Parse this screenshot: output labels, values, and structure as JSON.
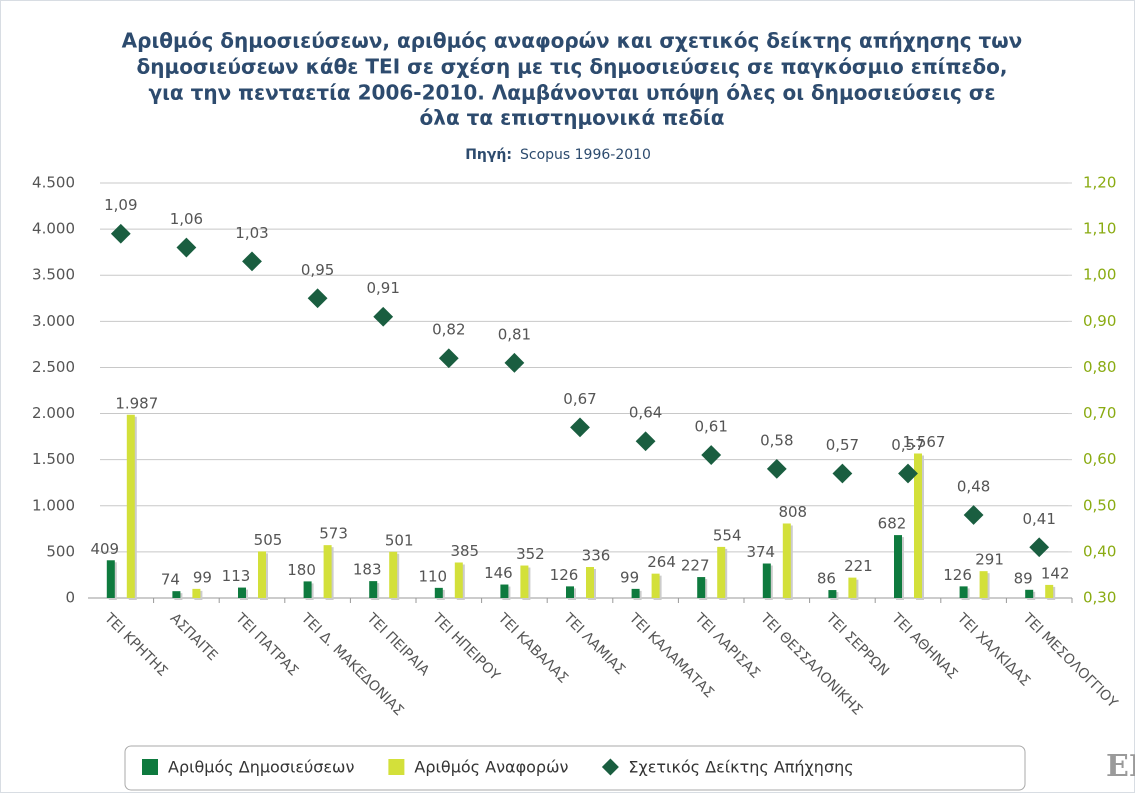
{
  "chart_data": {
    "type": "bar_scatter",
    "title_lines": [
      "Αριθμός δημοσιεύσεων, αριθμός αναφορών και σχετικός δείκτης απήχησης των",
      "δημοσιεύσεων κάθε ΤΕΙ σε σχέση με τις δημοσιεύσεις σε παγκόσμιο επίπεδο,",
      "για την πενταετία 2006-2010. Λαμβάνονται υπόψη όλες οι δημοσιεύσεις σε",
      "όλα τα επιστημονικά πεδία"
    ],
    "source_label": "Πηγή:",
    "source": "Scopus 1996-2010",
    "logo_text": "EK",
    "categories": [
      "ΤΕΙ ΚΡΗΤΗΣ",
      "ΑΣΠΑΙΤΕ",
      "ΤΕΙ ΠΑΤΡΑΣ",
      "ΤΕΙ Δ. ΜΑΚΕΔΟΝΙΑΣ",
      "ΤΕΙ ΠΕΙΡΑΙΑ",
      "ΤΕΙ ΗΠΕΙΡΟΥ",
      "ΤΕΙ ΚΑΒΑΛΑΣ",
      "ΤΕΙ ΛΑΜΙΑΣ",
      "ΤΕΙ ΚΑΛΑΜΑΤΑΣ",
      "ΤΕΙ ΛΑΡΙΣΑΣ",
      "ΤΕΙ ΘΕΣΣΑΛΟΝΙΚΗΣ",
      "ΤΕΙ ΣΕΡΡΩΝ",
      "ΤΕΙ ΑΘΗΝΑΣ",
      "ΤΕΙ ΧΑΛΚΙΔΑΣ",
      "ΤΕΙ ΜΕΣΟΛΟΓΓΙΟΥ"
    ],
    "series": [
      {
        "name": "Αριθμός Δημοσιεύσεων",
        "color": "#0e7a3e",
        "kind": "bar",
        "values": [
          409,
          74,
          113,
          180,
          183,
          110,
          146,
          126,
          99,
          227,
          374,
          86,
          682,
          126,
          89
        ]
      },
      {
        "name": "Αριθμός Αναφορών",
        "color": "#d3e03a",
        "kind": "bar",
        "values": [
          1987,
          99,
          505,
          573,
          501,
          385,
          352,
          336,
          264,
          554,
          808,
          221,
          1567,
          291,
          142
        ],
        "value_labels": [
          "1.987",
          "99",
          "505",
          "573",
          "501",
          "385",
          "352",
          "336",
          "264",
          "554",
          "808",
          "221",
          "1.567",
          "291",
          "142"
        ]
      },
      {
        "name": "Σχετικός Δείκτης Απήχησης",
        "color": "#1a5e40",
        "kind": "scatter",
        "axis": "y2",
        "values": [
          1.09,
          1.06,
          1.03,
          0.95,
          0.91,
          0.82,
          0.81,
          0.67,
          0.64,
          0.61,
          0.58,
          0.57,
          0.57,
          0.48,
          0.41
        ],
        "value_labels": [
          "1,09",
          "1,06",
          "1,03",
          "0,95",
          "0,91",
          "0,82",
          "0,81",
          "0,67",
          "0,64",
          "0,61",
          "0,58",
          "0,57",
          "0,57",
          "0,48",
          "0,41"
        ]
      }
    ],
    "ylim": [
      0,
      4500
    ],
    "yticks": [
      0,
      500,
      {
        "value": 1000,
        "label": "1.000"
      },
      {
        "value": 1500,
        "label": "1.500"
      },
      {
        "value": 2000,
        "label": "2.000"
      },
      {
        "value": 2500,
        "label": "2.500"
      },
      {
        "value": 3000,
        "label": "3.000"
      },
      {
        "value": 3500,
        "label": "3.500"
      },
      {
        "value": 4000,
        "label": "4.000"
      },
      {
        "value": 4500,
        "label": "4.500"
      }
    ],
    "y2lim": [
      0.3,
      1.2
    ],
    "y2ticks": [
      {
        "value": 0.3,
        "label": "0,30"
      },
      {
        "value": 0.4,
        "label": "0,40"
      },
      {
        "value": 0.5,
        "label": "0,50"
      },
      {
        "value": 0.6,
        "label": "0,60"
      },
      {
        "value": 0.7,
        "label": "0,70"
      },
      {
        "value": 0.8,
        "label": "0,80"
      },
      {
        "value": 0.9,
        "label": "0,90"
      },
      {
        "value": 1.0,
        "label": "1,00"
      },
      {
        "value": 1.1,
        "label": "1,10"
      },
      {
        "value": 1.2,
        "label": "1,20"
      }
    ],
    "y2color": "#8aab12",
    "grid": true,
    "legend": "bottom"
  }
}
